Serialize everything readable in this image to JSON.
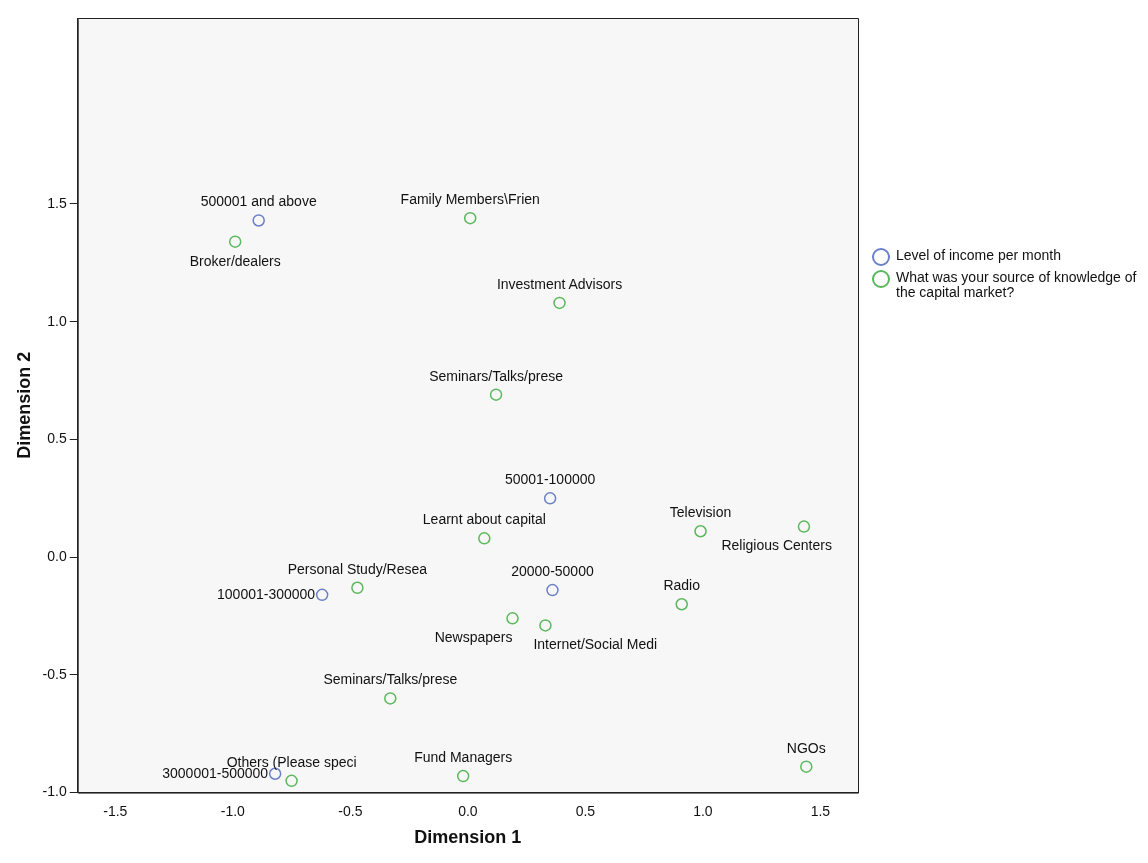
{
  "chart_data": {
    "type": "scatter",
    "xlabel": "Dimension 1",
    "ylabel": "Dimension 2",
    "xlim": [
      -1.66,
      1.66
    ],
    "ylim": [
      -1.0,
      2.29
    ],
    "xticks": [
      -1.5,
      {
        "value": -1,
        "label": "-1.0"
      },
      -0.5,
      {
        "value": 0,
        "label": "0.0"
      },
      0.5,
      {
        "value": 1,
        "label": "1.0"
      },
      1.5
    ],
    "yticks": [
      {
        "value": -1,
        "label": "-1.0"
      },
      -0.5,
      {
        "value": 0,
        "label": "0.0"
      },
      0.5,
      {
        "value": 1,
        "label": "1.0"
      },
      1.5
    ],
    "grid": false,
    "legend": "right",
    "marker": "circle",
    "series": [
      {
        "name": "Level of income per month",
        "color": "#6b80c6",
        "x": [
          -0.89,
          0.35,
          -0.62,
          0.36,
          -0.82
        ],
        "values": [
          1.43,
          0.25,
          -0.16,
          -0.14,
          -0.92
        ]
      },
      {
        "name": "What was your source of knowledge of the capital market?",
        "color": "#5cb85c",
        "x": [
          -0.99,
          0.01,
          0.39,
          0.12,
          0.07,
          0.99,
          1.43,
          -0.47,
          0.91,
          0.19,
          0.33,
          -0.33,
          -0.75,
          -0.02,
          1.44
        ],
        "values": [
          1.34,
          1.44,
          1.08,
          0.69,
          0.08,
          0.11,
          0.13,
          -0.13,
          -0.2,
          -0.26,
          -0.29,
          -0.6,
          -0.95,
          -0.93,
          -0.89
        ]
      }
    ],
    "annotations": [
      {
        "text": "500001 and above",
        "x": -0.89,
        "y": 1.43
      },
      {
        "text": "Broker/dealers",
        "x": -0.99,
        "y": 1.34
      },
      {
        "text": "Family Members\\Frien",
        "x": 0.01,
        "y": 1.44
      },
      {
        "text": "Investment Advisors",
        "x": 0.39,
        "y": 1.08
      },
      {
        "text": "Seminars/Talks/prese",
        "x": 0.12,
        "y": 0.69
      },
      {
        "text": "50001-100000",
        "x": 0.35,
        "y": 0.25
      },
      {
        "text": "Learnt about capital",
        "x": 0.07,
        "y": 0.08
      },
      {
        "text": "Television",
        "x": 0.99,
        "y": 0.11
      },
      {
        "text": "Religious Centers",
        "x": 1.43,
        "y": 0.13
      },
      {
        "text": "Personal Study/Resea",
        "x": -0.47,
        "y": -0.13
      },
      {
        "text": "100001-300000",
        "x": -0.62,
        "y": -0.16
      },
      {
        "text": "20000-50000",
        "x": 0.36,
        "y": -0.14
      },
      {
        "text": "Radio",
        "x": 0.91,
        "y": -0.2
      },
      {
        "text": "Newspapers",
        "x": 0.19,
        "y": -0.26
      },
      {
        "text": "Internet/Social Medi",
        "x": 0.33,
        "y": -0.29
      },
      {
        "text": "Seminars/Talks/prese",
        "x": -0.33,
        "y": -0.6
      },
      {
        "text": "Others (Please speci",
        "x": -0.75,
        "y": -0.95
      },
      {
        "text": "3000001-500000",
        "x": -0.82,
        "y": -0.92
      },
      {
        "text": "Fund Managers",
        "x": -0.02,
        "y": -0.93
      },
      {
        "text": "NGOs",
        "x": 1.44,
        "y": -0.89
      }
    ]
  }
}
